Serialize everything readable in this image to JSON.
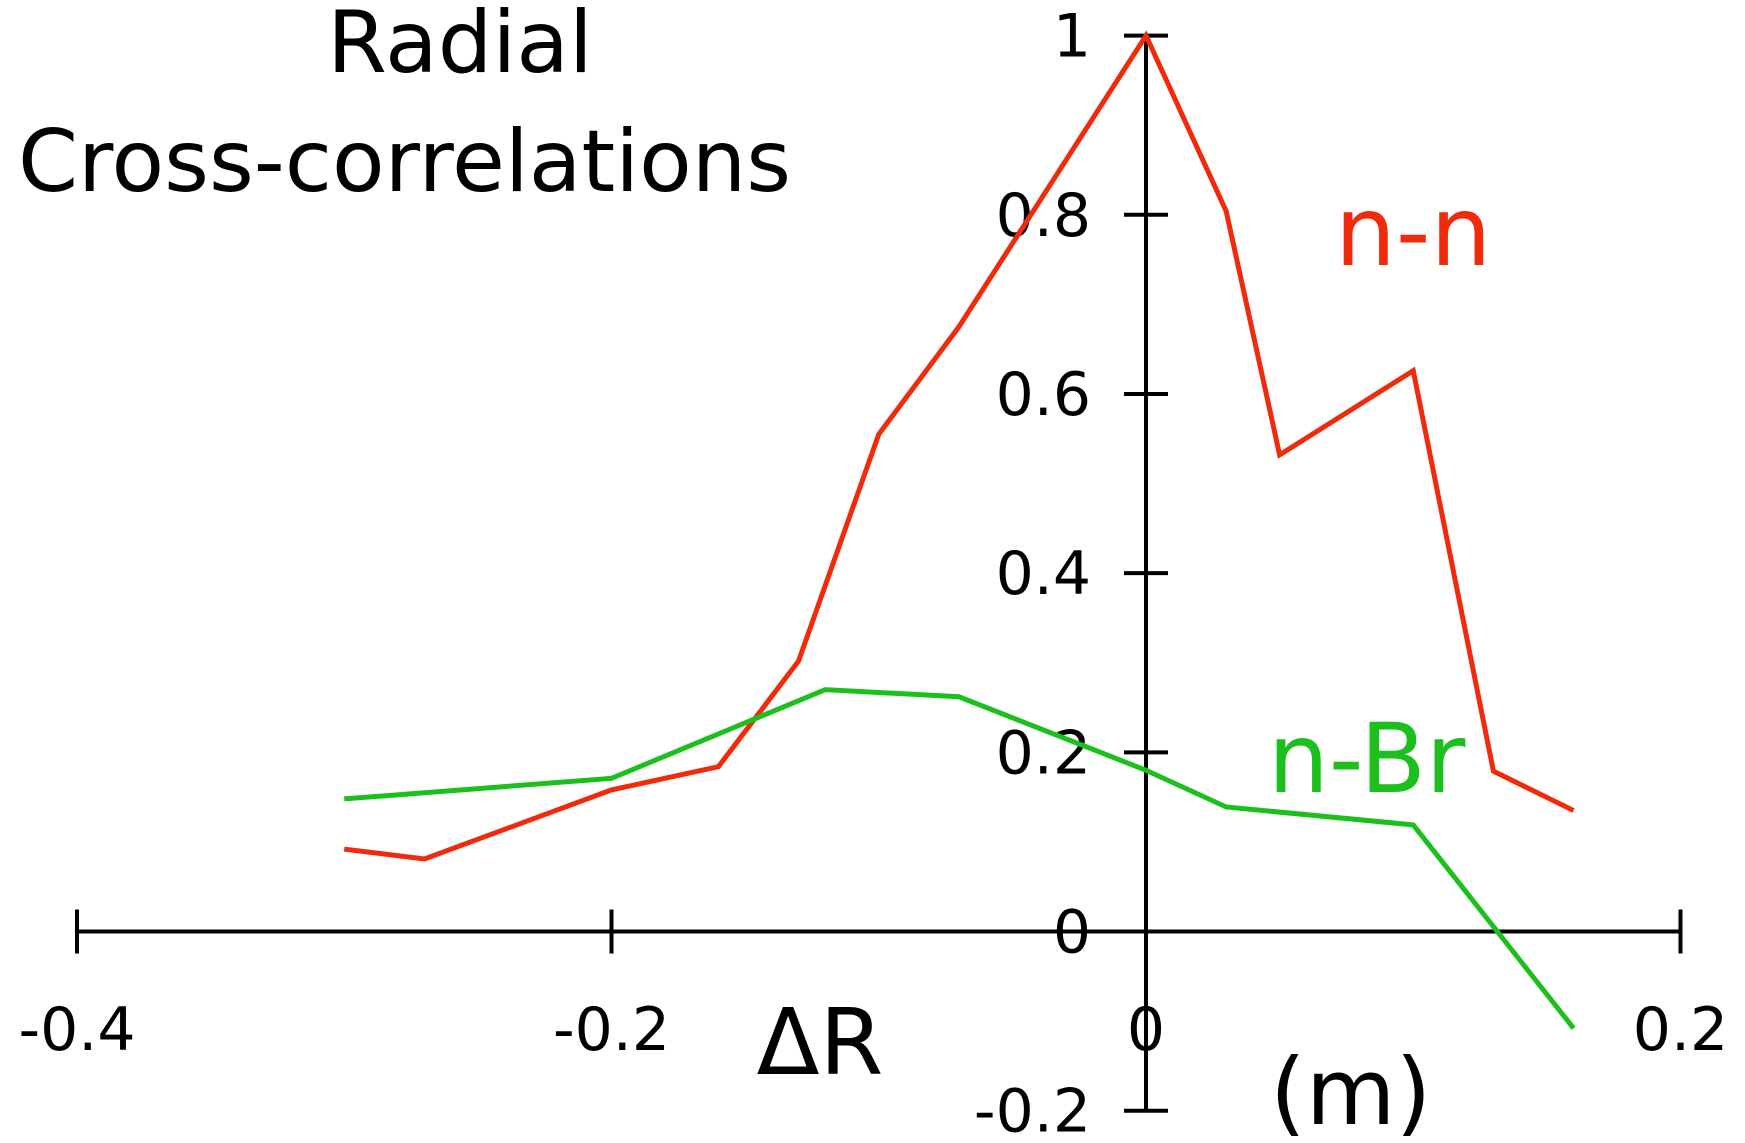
{
  "chart_data": {
    "type": "line",
    "title_lines": [
      "Radial",
      "Cross-correlations"
    ],
    "xlabel": "ΔR",
    "xunit": "(m)",
    "xlim": [
      -0.4,
      0.2
    ],
    "xticks": [
      -0.4,
      -0.2,
      0,
      0.2
    ],
    "ylim": [
      -0.2,
      1
    ],
    "yticks": [
      -0.2,
      0,
      0.2,
      0.4,
      0.6,
      0.8,
      1
    ],
    "series": [
      {
        "name": "n-n",
        "color": "#f02a0a",
        "x": [
          -0.3,
          -0.27,
          -0.2,
          -0.16,
          -0.13,
          -0.1,
          -0.07,
          0,
          0.03,
          0.05,
          0.1,
          0.13,
          0.16
        ],
        "values": [
          0.092,
          0.081,
          0.158,
          0.184,
          0.302,
          0.555,
          0.675,
          1,
          0.804,
          0.532,
          0.626,
          0.179,
          0.135
        ]
      },
      {
        "name": "n-Br",
        "color": "#1cc01c",
        "x": [
          -0.3,
          -0.2,
          -0.12,
          -0.07,
          0,
          0.03,
          0.1,
          0.16
        ],
        "values": [
          0.148,
          0.171,
          0.27,
          0.262,
          0.18,
          0.139,
          0.119,
          -0.108
        ]
      }
    ]
  }
}
